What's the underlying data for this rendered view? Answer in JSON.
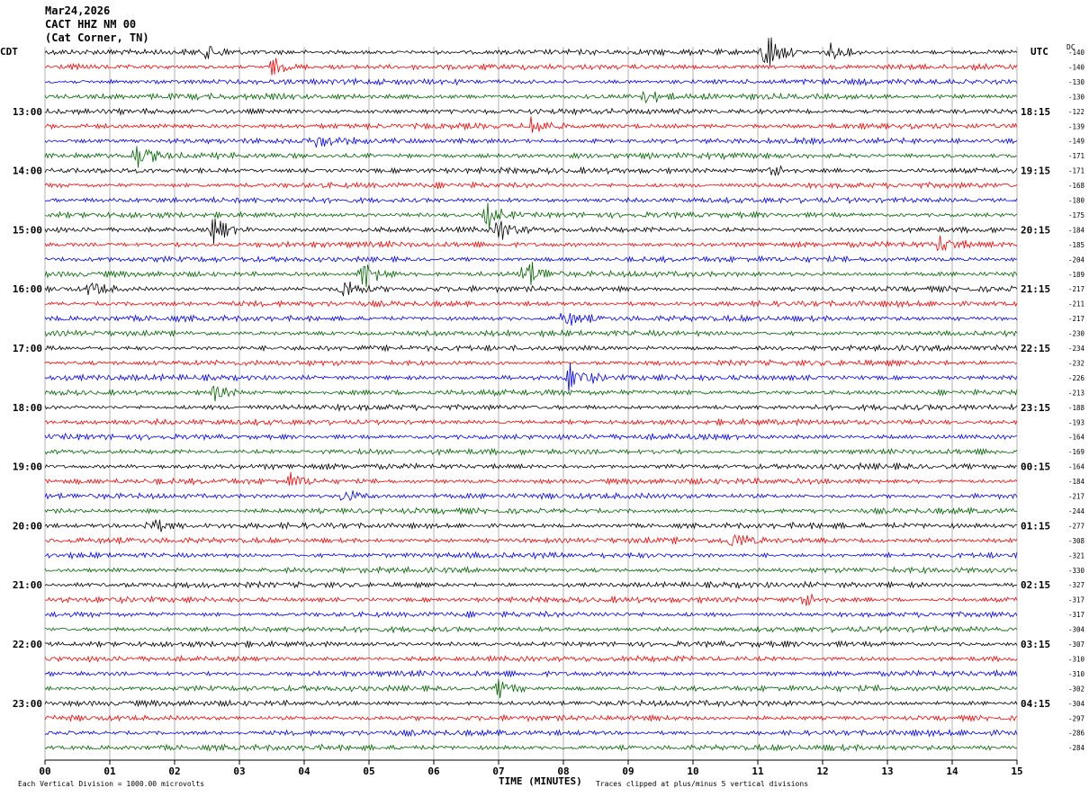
{
  "header": {
    "date": "Mar24,2026",
    "station": "CACT HHZ NM 00",
    "location": "(Cat Corner, TN)"
  },
  "labels": {
    "left_tz": "CDT",
    "right_tz": "UTC",
    "dc": "DC",
    "footer_left": "Each Vertical Division = 1000.00 microvolts",
    "footer_right": "Traces clipped at plus/minus 5 vertical divisions",
    "xlabel": "TIME (MINUTES)"
  },
  "colors": {
    "trace_cycle": [
      "#000000",
      "#ff0000",
      "#0000ff",
      "#006600"
    ],
    "grid": "#808080"
  },
  "chart_data": {
    "type": "line",
    "title": "CACT HHZ NM 00",
    "xlabel": "TIME (MINUTES)",
    "xlim": [
      0,
      15
    ],
    "x_ticks": [
      "00",
      "01",
      "02",
      "03",
      "04",
      "05",
      "06",
      "07",
      "08",
      "09",
      "10",
      "11",
      "12",
      "13",
      "14",
      "15"
    ],
    "minutes_per_line": 15,
    "lines_per_hour": 4,
    "left_hour_labels": [
      "13:00",
      "14:00",
      "15:00",
      "16:00",
      "17:00",
      "18:00",
      "19:00",
      "20:00",
      "21:00",
      "22:00",
      "23:00"
    ],
    "right_hour_labels": [
      "18:15",
      "19:15",
      "20:15",
      "21:15",
      "22:15",
      "23:15",
      "00:15",
      "01:15",
      "02:15",
      "03:15",
      "04:15"
    ],
    "dc_offsets": [
      -140,
      -140,
      -130,
      -130,
      -122,
      -139,
      -149,
      -171,
      -171,
      -168,
      -180,
      -175,
      -184,
      -185,
      -204,
      -189,
      -217,
      -211,
      -217,
      -230,
      -234,
      -232,
      -226,
      -213,
      -188,
      -193,
      -164,
      -169,
      -164,
      -184,
      -217,
      -244,
      -277,
      -308,
      -321,
      -330,
      -327,
      -317,
      -317,
      -304,
      -307,
      -310,
      -310,
      -302,
      -304,
      -297,
      -286,
      -284
    ],
    "events": [
      {
        "line": 0,
        "minute": 11.1,
        "amplitude": 3.2
      },
      {
        "line": 0,
        "minute": 2.5,
        "amplitude": 1.3
      },
      {
        "line": 0,
        "minute": 12.1,
        "amplitude": 1.3
      },
      {
        "line": 1,
        "minute": 3.5,
        "amplitude": 1.2
      },
      {
        "line": 3,
        "minute": 9.2,
        "amplitude": 1.2
      },
      {
        "line": 5,
        "minute": 7.5,
        "amplitude": 1.5
      },
      {
        "line": 6,
        "minute": 4.2,
        "amplitude": 1.2
      },
      {
        "line": 7,
        "minute": 1.4,
        "amplitude": 1.8
      },
      {
        "line": 8,
        "minute": 11.2,
        "amplitude": 1.2
      },
      {
        "line": 11,
        "minute": 6.8,
        "amplitude": 1.8
      },
      {
        "line": 12,
        "minute": 2.6,
        "amplitude": 2.0
      },
      {
        "line": 12,
        "minute": 7.0,
        "amplitude": 1.6
      },
      {
        "line": 13,
        "minute": 13.8,
        "amplitude": 1.4
      },
      {
        "line": 15,
        "minute": 4.9,
        "amplitude": 2.6
      },
      {
        "line": 15,
        "minute": 7.4,
        "amplitude": 2.6
      },
      {
        "line": 16,
        "minute": 4.6,
        "amplitude": 1.6
      },
      {
        "line": 16,
        "minute": 0.7,
        "amplitude": 1.3
      },
      {
        "line": 18,
        "minute": 8.0,
        "amplitude": 1.3
      },
      {
        "line": 22,
        "minute": 8.1,
        "amplitude": 2.3
      },
      {
        "line": 23,
        "minute": 2.6,
        "amplitude": 1.3
      },
      {
        "line": 29,
        "minute": 3.8,
        "amplitude": 1.2
      },
      {
        "line": 30,
        "minute": 4.6,
        "amplitude": 1.2
      },
      {
        "line": 32,
        "minute": 1.6,
        "amplitude": 1.3
      },
      {
        "line": 33,
        "minute": 10.6,
        "amplitude": 1.5
      },
      {
        "line": 37,
        "minute": 11.7,
        "amplitude": 1.3
      },
      {
        "line": 43,
        "minute": 7.0,
        "amplitude": 1.3
      }
    ]
  }
}
